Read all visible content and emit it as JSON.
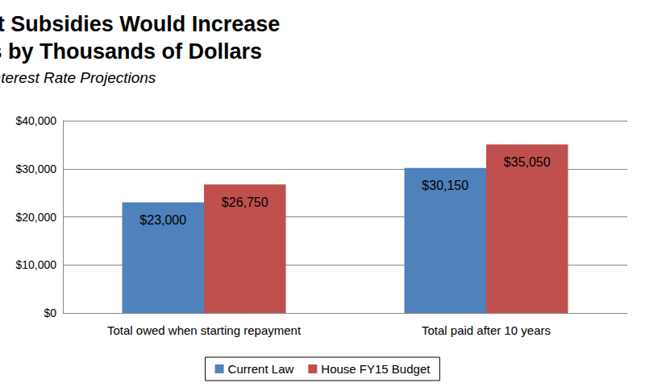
{
  "chart_data": {
    "type": "bar",
    "title": "Eliminating Interest Subsidies Would Increase Borrowing Costs by Thousands of Dollars",
    "subtitle": "Current Interest Rate Projections",
    "categories": [
      "Total owed when starting repayment",
      "Total paid after 10 years"
    ],
    "series": [
      {
        "name": "Current Law",
        "color": "#4f81bd",
        "values": [
          23000,
          30150
        ],
        "value_labels": [
          "$23,000",
          "$30,150"
        ]
      },
      {
        "name": "House FY15 Budget",
        "color": "#c0504d",
        "values": [
          26750,
          35050
        ],
        "value_labels": [
          "$26,750",
          "$35,050"
        ]
      }
    ],
    "ylim": [
      0,
      40000
    ],
    "yticks": [
      {
        "value": 0,
        "label": "$0"
      },
      {
        "value": 10000,
        "label": "$10,000"
      },
      {
        "value": 20000,
        "label": "$20,000"
      },
      {
        "value": 30000,
        "label": "$30,000"
      },
      {
        "value": 40000,
        "label": "$40,000"
      }
    ],
    "grid": true,
    "legend": "bottom",
    "data_labels": true
  }
}
